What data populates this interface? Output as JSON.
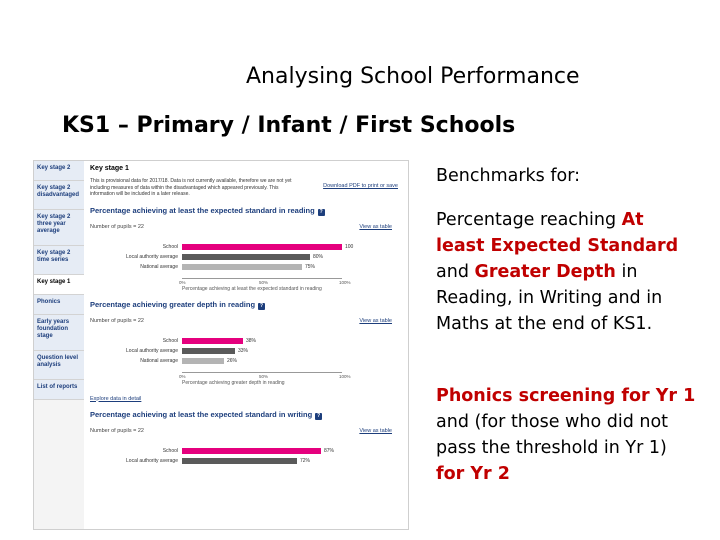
{
  "slide": {
    "title": "Analysing School Performance",
    "subtitle": "KS1 – Primary / Infant / First Schools"
  },
  "screenshot": {
    "nav": [
      {
        "label": "Key stage 2",
        "active": false
      },
      {
        "label": "Key stage 2 disadvantaged",
        "active": false
      },
      {
        "label": "Key stage 2 three year average",
        "active": false
      },
      {
        "label": "Key stage 2 time series",
        "active": false
      },
      {
        "label": "Key stage 1",
        "active": true
      },
      {
        "label": "Phonics",
        "active": false
      },
      {
        "label": "Early years foundation stage",
        "active": false
      },
      {
        "label": "Question level analysis",
        "active": false
      },
      {
        "label": "List of reports",
        "active": false
      }
    ],
    "heading": "Key stage 1",
    "notice": "This is provisional data for 2017/18. Data is not currently available, therefore we are not yet including measures of data within the disadvantaged which appeared previously. This information will be included in a later release.",
    "pdf_link": "Download PDF to print or save",
    "view_as_table": "View as table",
    "explore_link": "Explore data in detail",
    "sections": [
      {
        "title": "Percentage achieving at least the expected standard in reading",
        "help": "?",
        "pupils": "Number of pupils = 22",
        "axis_title": "Percentage achieving at least the expected standard in reading",
        "bars": [
          {
            "label": "School",
            "value": 100,
            "value_label": "100",
            "color": "#e5007e"
          },
          {
            "label": "Local authority average",
            "value": 80,
            "value_label": "80%",
            "color": "#5a5a5a"
          },
          {
            "label": "National average",
            "value": 75,
            "value_label": "75%",
            "color": "#b4b4b4"
          }
        ]
      },
      {
        "title": "Percentage achieving greater depth in reading",
        "help": "?",
        "pupils": "Number of pupils = 22",
        "axis_title": "Percentage achieving greater depth in reading",
        "bars": [
          {
            "label": "School",
            "value": 38,
            "value_label": "38%",
            "color": "#e5007e"
          },
          {
            "label": "Local authority average",
            "value": 33,
            "value_label": "33%",
            "color": "#5a5a5a"
          },
          {
            "label": "National average",
            "value": 26,
            "value_label": "26%",
            "color": "#b4b4b4"
          }
        ]
      },
      {
        "title": "Percentage achieving at least the expected standard in writing",
        "help": "?",
        "pupils": "Number of pupils = 22",
        "axis_title": "",
        "bars": [
          {
            "label": "School",
            "value": 87,
            "value_label": "87%",
            "color": "#e5007e"
          },
          {
            "label": "Local authority average",
            "value": 72,
            "value_label": "72%",
            "color": "#5a5a5a"
          }
        ]
      }
    ],
    "ticks": [
      "0%",
      "50%",
      "100%"
    ]
  },
  "right_text": {
    "p1": "Benchmarks for:",
    "p2_a": "Percentage reaching ",
    "p2_b": "At least Expected Standard",
    "p2_c": " and ",
    "p2_d": "Greater Depth",
    "p2_e": " in Reading, in Writing and in Maths at the end of KS1.",
    "p3_a": "Phonics screening for Yr 1",
    "p3_b": " and (for those who did not pass the threshold in Yr 1) ",
    "p3_c": "for Yr 2"
  }
}
